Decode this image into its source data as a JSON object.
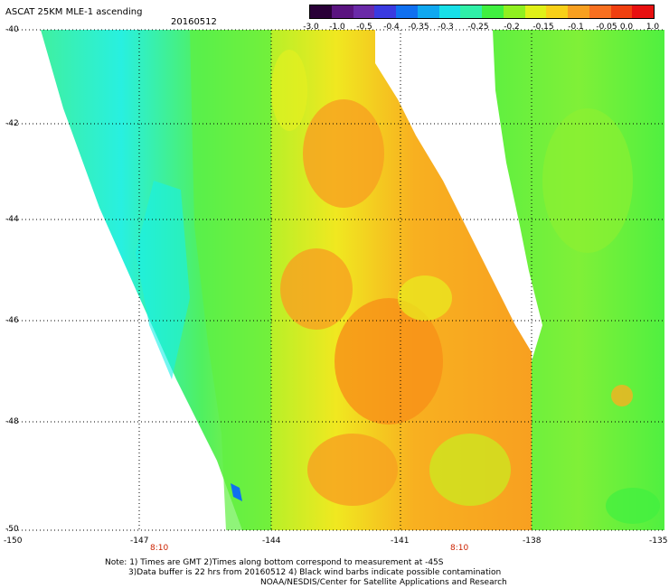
{
  "header": {
    "title": "ASCAT 25KM MLE-1 ascending",
    "date": "20160512"
  },
  "colorbar": {
    "labels": [
      "-3.0",
      "-1.0",
      "-0.5",
      "-0.4",
      "-0.35",
      "-0.3",
      "-0.25",
      "-0.2",
      "-0.15",
      "-0.1",
      "-0.05",
      "0.0",
      "1.0"
    ],
    "colors": [
      "#2a0038",
      "#5a1480",
      "#6a2aa8",
      "#3a3ae0",
      "#1070f0",
      "#10a8f0",
      "#18e0e8",
      "#30f0a8",
      "#40f040",
      "#90f020",
      "#e0f018",
      "#f8d018",
      "#f8a020",
      "#f87020",
      "#f04010",
      "#e81010"
    ]
  },
  "map": {
    "lat_labels": [
      "-40",
      "-42",
      "-44",
      "-46",
      "-48",
      "-50"
    ],
    "lon_labels": [
      "-150",
      "-147",
      "-144",
      "-141",
      "-138",
      "-135"
    ],
    "time_labels": [
      "8:10",
      "8:10"
    ],
    "swath_colors": {
      "cyan": "#20f0e0",
      "green": "#40f040",
      "yellowgreen": "#b8f020",
      "yellow": "#f0f020",
      "orange": "#f8b020",
      "darkorange": "#f89018"
    }
  },
  "notes": {
    "line1": "Note: 1) Times are GMT 2)Times along bottom correspond to measurement at -45S",
    "line2": "3)Data buffer is 22 hrs from 20160512 4) Black wind barbs indicate possible contamination",
    "line3": "NOAA/NESDIS/Center for Satellite Applications and Research"
  }
}
